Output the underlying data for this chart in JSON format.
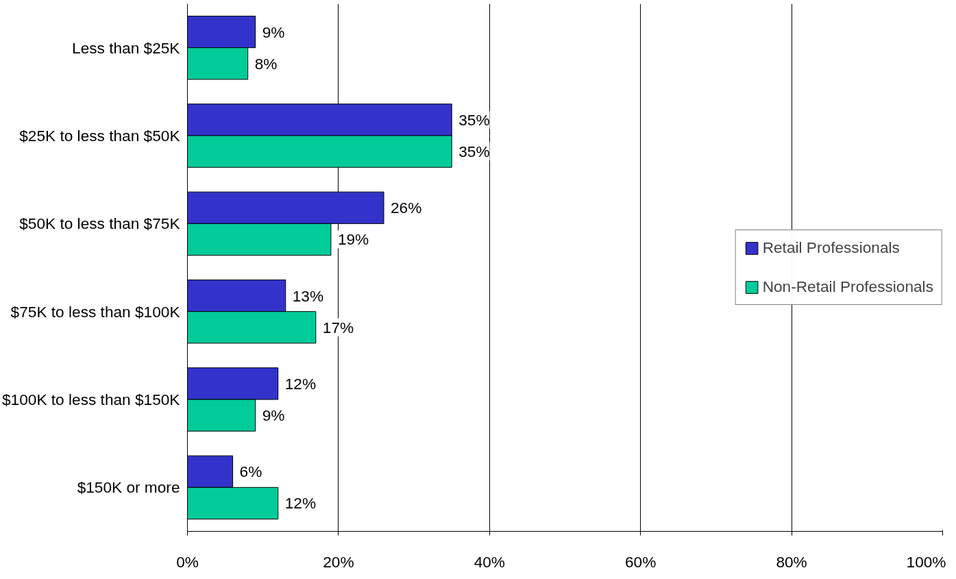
{
  "chart_data": {
    "type": "bar",
    "orientation": "horizontal",
    "categories": [
      "Less than $25K",
      "$25K to less than $50K",
      "$50K to less than $75K",
      "$75K to less than $100K",
      "$100K to less than $150K",
      "$150K or more"
    ],
    "series": [
      {
        "name": "Retail Professionals",
        "color": "#3333cc",
        "values": [
          9,
          35,
          26,
          13,
          12,
          6
        ],
        "value_labels": [
          "9%",
          "35%",
          "26%",
          "13%",
          "12%",
          "6%"
        ]
      },
      {
        "name": "Non-Retail Professionals",
        "color": "#00cc99",
        "values": [
          8,
          35,
          19,
          17,
          9,
          12
        ],
        "value_labels": [
          "8%",
          "35%",
          "19%",
          "17%",
          "9%",
          "12%"
        ]
      }
    ],
    "xlim": [
      0,
      100
    ],
    "xticks": [
      {
        "value": 0,
        "label": "0%"
      },
      {
        "value": 20,
        "label": "20%"
      },
      {
        "value": 40,
        "label": "40%"
      },
      {
        "value": 60,
        "label": "60%"
      },
      {
        "value": 80,
        "label": "80%"
      },
      {
        "value": 100,
        "label": "100%"
      }
    ],
    "grid": "x",
    "legend": "right"
  }
}
